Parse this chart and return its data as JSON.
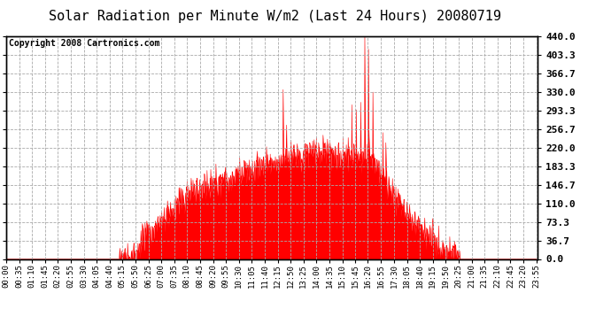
{
  "title": "Solar Radiation per Minute W/m2 (Last 24 Hours) 20080719",
  "copyright_text": "Copyright 2008 Cartronics.com",
  "bg_color": "#ffffff",
  "plot_bg_color": "#ffffff",
  "line_color": "#ff0000",
  "fill_color": "#ff0000",
  "grid_color": "#aaaaaa",
  "grid_style": "--",
  "y_min": 0.0,
  "y_max": 440.0,
  "y_ticks": [
    0.0,
    36.7,
    73.3,
    110.0,
    146.7,
    183.3,
    220.0,
    256.7,
    293.3,
    330.0,
    366.7,
    403.3,
    440.0
  ],
  "x_tick_labels": [
    "00:00",
    "00:35",
    "01:10",
    "01:45",
    "02:20",
    "02:55",
    "03:30",
    "04:05",
    "04:40",
    "05:15",
    "05:50",
    "06:25",
    "07:00",
    "07:35",
    "08:10",
    "08:45",
    "09:20",
    "09:55",
    "10:30",
    "11:05",
    "11:40",
    "12:15",
    "12:50",
    "13:25",
    "14:00",
    "14:35",
    "15:10",
    "15:45",
    "16:20",
    "16:55",
    "17:30",
    "18:05",
    "18:40",
    "19:15",
    "19:50",
    "20:25",
    "21:00",
    "21:35",
    "22:10",
    "22:45",
    "23:20",
    "23:55"
  ],
  "title_fontsize": 11,
  "copyright_fontsize": 7,
  "tick_fontsize": 6.5,
  "ytick_fontsize": 8,
  "border_color": "#000000"
}
